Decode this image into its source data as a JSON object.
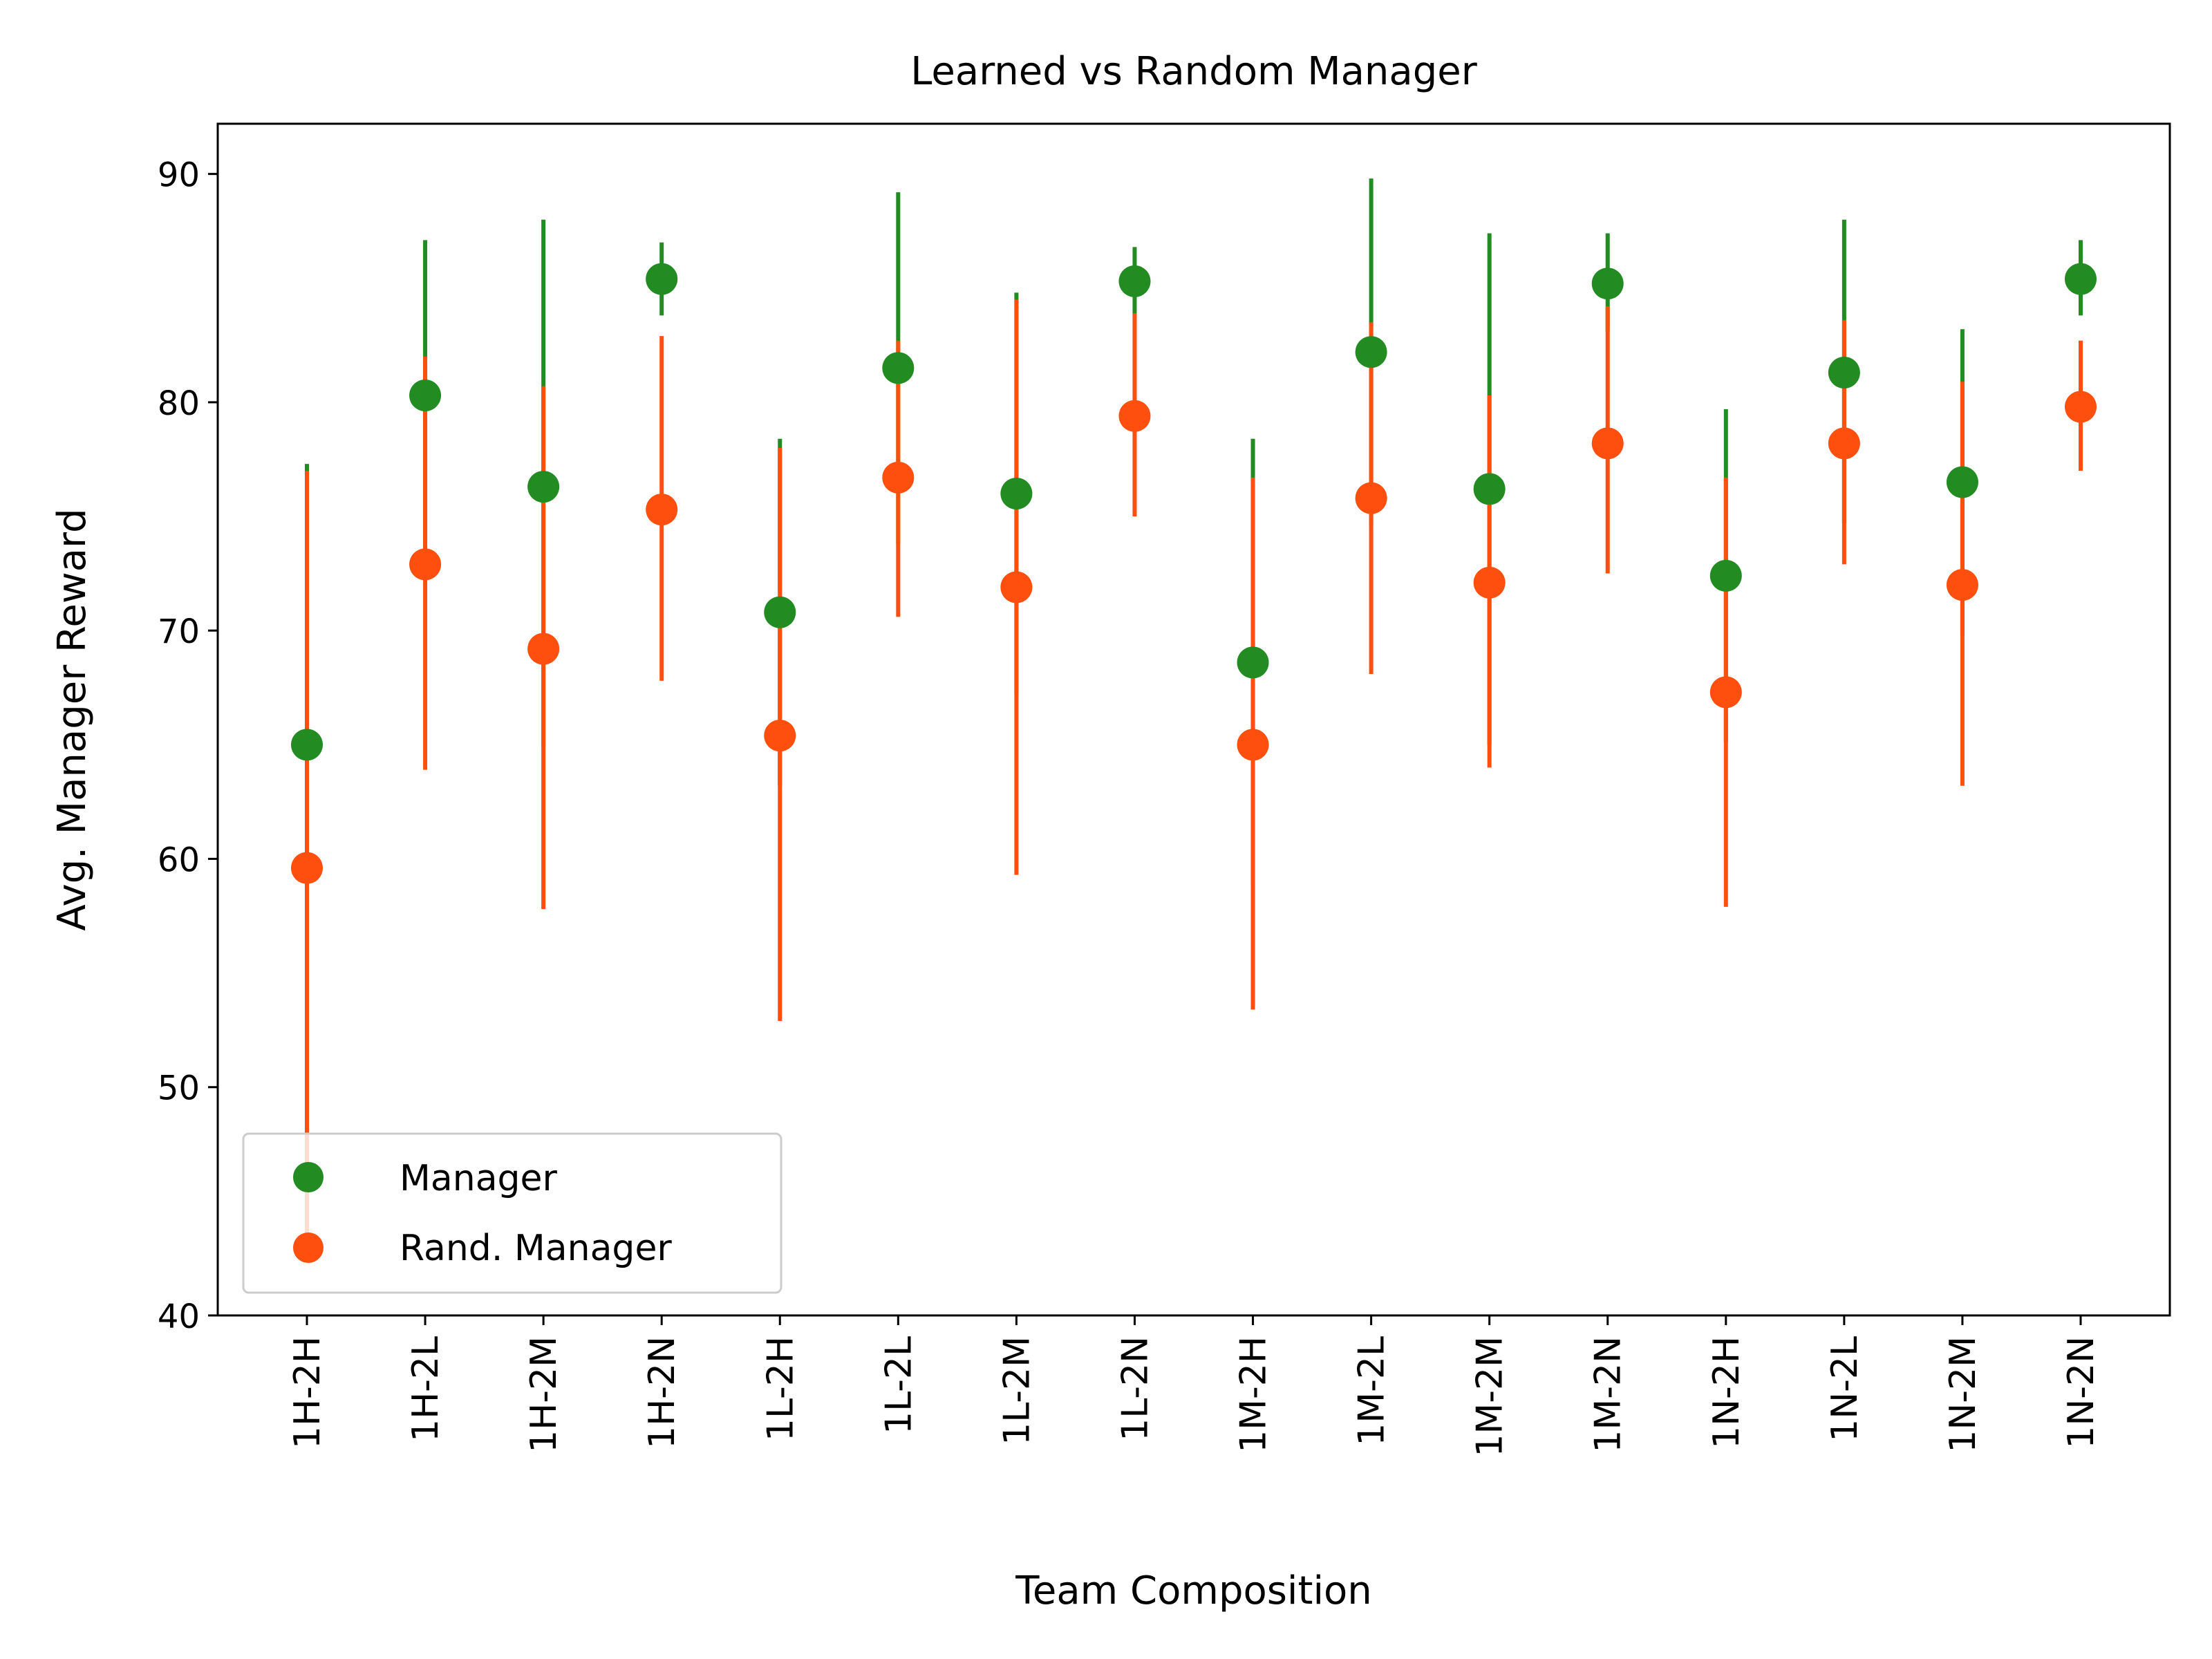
{
  "chart_data": {
    "type": "scatter",
    "title": "Learned vs Random Manager",
    "xlabel": "Team Composition",
    "ylabel": "Avg. Manager Reward",
    "ylim": [
      40,
      92.2
    ],
    "yticks": [
      40,
      50,
      60,
      70,
      80,
      90
    ],
    "grid": false,
    "legend_placement": "lower-left",
    "categories": [
      "1H-2H",
      "1H-2L",
      "1H-2M",
      "1H-2N",
      "1L-2H",
      "1L-2L",
      "1L-2M",
      "1L-2N",
      "1M-2H",
      "1M-2L",
      "1M-2M",
      "1M-2N",
      "1N-2H",
      "1N-2L",
      "1N-2M",
      "1N-2N"
    ],
    "series": [
      {
        "name": "Manager",
        "color": "#228b22",
        "values": [
          65.0,
          80.3,
          76.3,
          85.4,
          70.8,
          81.5,
          76.0,
          85.3,
          68.6,
          82.2,
          76.2,
          85.2,
          72.4,
          81.3,
          76.5,
          85.4
        ],
        "err_low": [
          52.7,
          73.5,
          64.9,
          83.8,
          63.2,
          73.8,
          67.2,
          83.8,
          58.9,
          74.6,
          65.0,
          83.1,
          65.1,
          74.7,
          69.8,
          83.8
        ],
        "err_high": [
          77.3,
          87.1,
          88.0,
          87.0,
          78.4,
          89.2,
          84.8,
          86.8,
          78.4,
          89.8,
          87.4,
          87.4,
          79.7,
          88.0,
          83.2,
          87.1
        ]
      },
      {
        "name": "Rand. Manager",
        "color": "#ff4f0f",
        "values": [
          59.6,
          72.9,
          69.2,
          75.3,
          65.4,
          76.7,
          71.9,
          79.4,
          65.0,
          75.8,
          72.1,
          78.2,
          67.3,
          78.2,
          72.0,
          79.8
        ],
        "err_low": [
          43.3,
          63.9,
          57.8,
          67.8,
          52.9,
          70.6,
          59.3,
          75.0,
          53.4,
          68.1,
          64.0,
          72.5,
          57.9,
          72.9,
          63.2,
          77.0
        ],
        "err_high": [
          77.0,
          82.0,
          80.7,
          82.9,
          78.0,
          82.7,
          84.5,
          83.9,
          76.7,
          83.5,
          80.3,
          84.2,
          76.7,
          83.6,
          80.9,
          82.7
        ]
      }
    ]
  }
}
